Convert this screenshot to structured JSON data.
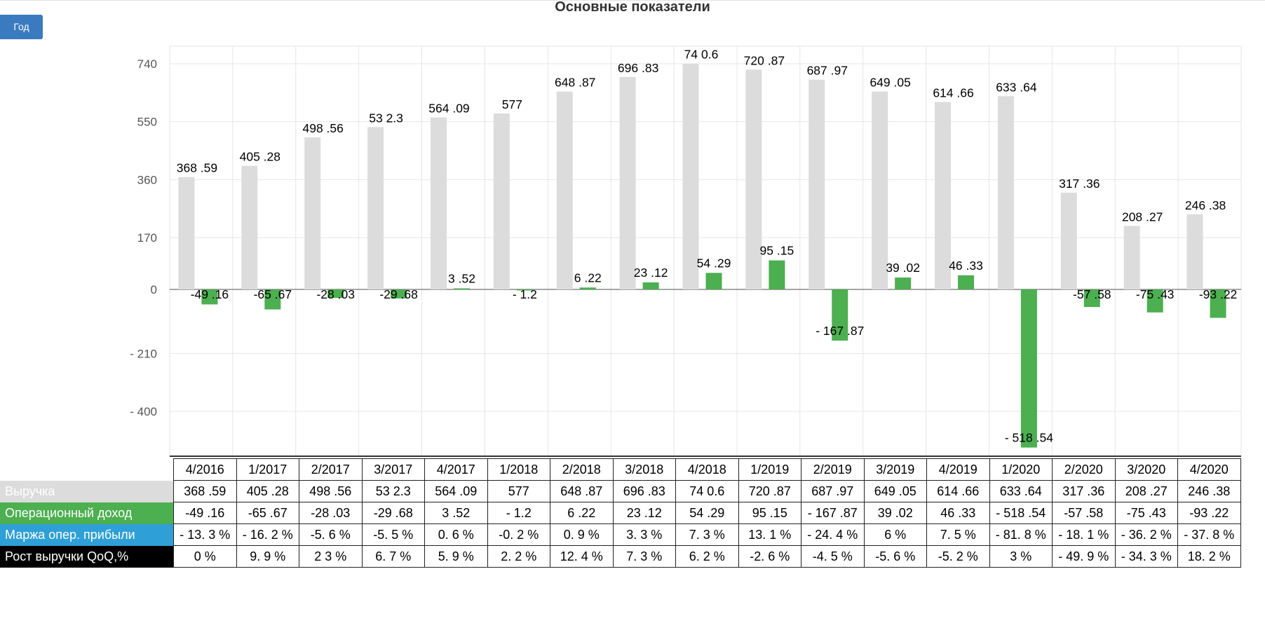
{
  "title": "Основные показатели",
  "period_button": "Год",
  "colors": {
    "revenue": "#dcdcdc",
    "op_income": "#4caf50",
    "margin": "#2f9fd8",
    "growth": "#000000"
  },
  "chart_data": {
    "type": "bar",
    "categories": [
      "4/2016",
      "1/2017",
      "2/2017",
      "3/2017",
      "4/2017",
      "1/2018",
      "2/2018",
      "3/2018",
      "4/2018",
      "1/2019",
      "2/2019",
      "3/2019",
      "4/2019",
      "1/2020",
      "2/2020",
      "3/2020",
      "4/2020"
    ],
    "series": [
      {
        "name": "Выручка",
        "values": [
          368.59,
          405.28,
          498.56,
          532.3,
          564.09,
          577,
          648.87,
          696.83,
          740.6,
          720.87,
          687.97,
          649.05,
          614.66,
          633.64,
          317.36,
          208.27,
          246.38
        ]
      },
      {
        "name": "Операционный доход",
        "values": [
          -49.16,
          -65.67,
          -28.03,
          -29.68,
          3.52,
          -1.2,
          6.22,
          23.12,
          54.29,
          95.15,
          -167.87,
          39.02,
          46.33,
          -518.54,
          -57.58,
          -75.43,
          -93.22
        ]
      }
    ],
    "value_labels": {
      "revenue": [
        "368 .59",
        "405 .28",
        "498 .56",
        "53 2.3",
        "564 .09",
        "577",
        "648 .87",
        "696 .83",
        "74 0.6",
        "720 .87",
        "687 .97",
        "649 .05",
        "614 .66",
        "633 .64",
        "317 .36",
        "208 .27",
        "246 .38"
      ],
      "op_income": [
        "-49 .16",
        "-65 .67",
        "-28 .03",
        "-29 .68",
        "3 .52",
        "- 1.2",
        "6 .22",
        "23 .12",
        "54 .29",
        "95 .15",
        "- 167 .87",
        "39 .02",
        "46 .33",
        "- 518 .54",
        "-57 .58",
        "-75 .43",
        "-93 .22"
      ]
    },
    "yticks": [
      740,
      550,
      360,
      170,
      0,
      -210,
      -400
    ],
    "ytick_labels": [
      "740",
      "550",
      "360",
      "170",
      "0",
      "- 210",
      "- 400"
    ],
    "ylim": [
      -560,
      795
    ],
    "grid": true,
    "xlabel": "",
    "ylabel": ""
  },
  "table": {
    "headers": [
      "4/2016",
      "1/2017",
      "2/2017",
      "3/2017",
      "4/2017",
      "1/2018",
      "2/2018",
      "3/2018",
      "4/2018",
      "1/2019",
      "2/2019",
      "3/2019",
      "4/2019",
      "1/2020",
      "2/2020",
      "3/2020",
      "4/2020"
    ],
    "rows": [
      {
        "label": "Выручка",
        "values": [
          "368 .59",
          "405 .28",
          "498 .56",
          "53 2.3",
          "564 .09",
          "577",
          "648 .87",
          "696 .83",
          "74 0.6",
          "720 .87",
          "687 .97",
          "649 .05",
          "614 .66",
          "633 .64",
          "317 .36",
          "208 .27",
          "246 .38"
        ]
      },
      {
        "label": "Операционный доход",
        "values": [
          "-49 .16",
          "-65 .67",
          "-28 .03",
          "-29 .68",
          "3 .52",
          "- 1.2",
          "6 .22",
          "23 .12",
          "54 .29",
          "95 .15",
          "- 167 .87",
          "39 .02",
          "46 .33",
          "- 518 .54",
          "-57 .58",
          "-75 .43",
          "-93 .22"
        ]
      },
      {
        "label": "Маржа опер. прибыли",
        "values": [
          "- 13. 3 %",
          "- 16. 2 %",
          "-5. 6 %",
          "-5. 5 %",
          "0. 6 %",
          "-0. 2 %",
          "0. 9 %",
          "3. 3 %",
          "7. 3 %",
          "13. 1 %",
          "- 24. 4 %",
          "6 %",
          "7. 5 %",
          "- 81. 8 %",
          "- 18. 1 %",
          "- 36. 2 %",
          "- 37. 8 %"
        ]
      },
      {
        "label": "Рост выручки QoQ,%",
        "values": [
          "0 %",
          "9. 9 %",
          "2 3 %",
          "6. 7 %",
          "5. 9 %",
          "2. 2 %",
          "12. 4 %",
          "7. 3 %",
          "6. 2 %",
          "-2. 6 %",
          "-4. 5 %",
          "-5. 6 %",
          "-5. 2 %",
          "3 %",
          "- 49. 9 %",
          "- 34. 3 %",
          "18. 2 %"
        ]
      }
    ]
  }
}
